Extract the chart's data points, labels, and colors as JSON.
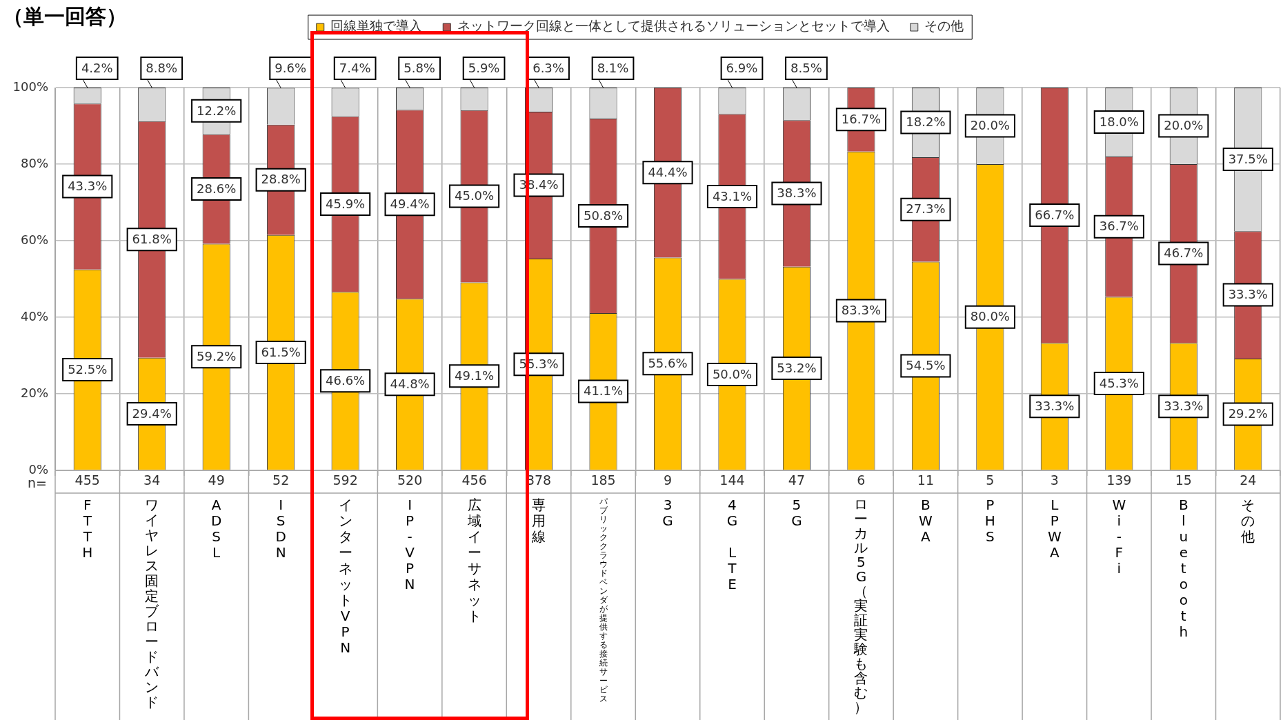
{
  "chart_data": {
    "type": "bar",
    "title": "（単一回答）",
    "stacked": true,
    "grid": true,
    "legend": "top",
    "categories": [
      "FTTH",
      "ワイヤレス固定ブロードバンド",
      "ADSL",
      "ISDN",
      "インターネットVPN",
      "IP-VPN",
      "広域イーサネット",
      "専用線",
      "パブリッククラウドベンダが提供する接続サービス",
      "3G",
      "4G LTE",
      "5G",
      "ローカル5G（実証実験も含む）",
      "BWA",
      "PHS",
      "LPWA",
      "Wi-Fi",
      "Bluetooth",
      "その他"
    ],
    "ylim": [
      0,
      100
    ],
    "yticks": [
      {
        "value": 0,
        "label": "0%"
      },
      {
        "value": 20,
        "label": "20%"
      },
      {
        "value": 40,
        "label": "40%"
      },
      {
        "value": 60,
        "label": "60%"
      },
      {
        "value": 80,
        "label": "80%"
      },
      {
        "value": 100,
        "label": "100%"
      }
    ],
    "series": [
      {
        "name": "回線単独で導入",
        "color": "#ffc000",
        "values": [
          52.5,
          29.4,
          59.2,
          61.5,
          46.6,
          44.8,
          49.1,
          55.3,
          41.1,
          55.6,
          50.0,
          53.2,
          83.3,
          54.5,
          80.0,
          33.3,
          45.3,
          33.3,
          29.2
        ],
        "value_labels": [
          "52.5%",
          "29.4%",
          "59.2%",
          "61.5%",
          "46.6%",
          "44.8%",
          "49.1%",
          "55.3%",
          "41.1%",
          "55.6%",
          "50.0%",
          "53.2%",
          "83.3%",
          "54.5%",
          "80.0%",
          "33.3%",
          "45.3%",
          "33.3%",
          "29.2%"
        ]
      },
      {
        "name": "ネットワーク回線と一体として提供されるソリューションとセットで導入",
        "color": "#c0504d",
        "values": [
          43.3,
          61.8,
          28.6,
          28.8,
          45.9,
          49.4,
          45.0,
          38.4,
          50.8,
          44.4,
          43.1,
          38.3,
          16.7,
          27.3,
          0,
          66.7,
          36.7,
          46.7,
          33.3
        ],
        "value_labels": [
          "43.3%",
          "61.8%",
          "28.6%",
          "28.8%",
          "45.9%",
          "49.4%",
          "45.0%",
          "38.4%",
          "50.8%",
          "44.4%",
          "43.1%",
          "38.3%",
          "16.7%",
          "27.3%",
          null,
          "66.7%",
          "36.7%",
          "46.7%",
          "33.3%"
        ]
      },
      {
        "name": "その他",
        "color": "#d9d9d9",
        "values": [
          4.2,
          8.8,
          12.2,
          9.6,
          7.4,
          5.8,
          5.9,
          6.3,
          8.1,
          0,
          6.9,
          8.5,
          0,
          18.2,
          20.0,
          0,
          18.0,
          20.0,
          37.5
        ],
        "value_labels": [
          "4.2%",
          "8.8%",
          "12.2%",
          "9.6%",
          "7.4%",
          "5.8%",
          "5.9%",
          "6.3%",
          "8.1%",
          null,
          "6.9%",
          "8.5%",
          null,
          "18.2%",
          "20.0%",
          null,
          "18.0%",
          "20.0%",
          "37.5%"
        ]
      }
    ],
    "annotations": [
      "n=",
      "455",
      "34",
      "49",
      "52",
      "592",
      "520",
      "456",
      "378",
      "185",
      "9",
      "144",
      "47",
      "6",
      "11",
      "5",
      "3",
      "139",
      "15",
      "24"
    ]
  }
}
